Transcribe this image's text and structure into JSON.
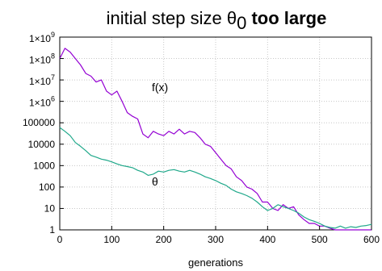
{
  "chart_data": {
    "type": "line",
    "title": {
      "prefix": "initial step size θ",
      "subscript": "0",
      "emphasis": "too large"
    },
    "xlabel": "generations",
    "ylabel": "",
    "xlim": [
      0,
      600
    ],
    "ylim": [
      1,
      1000000000
    ],
    "yscale": "log",
    "grid": true,
    "x_ticks": [
      0,
      100,
      200,
      300,
      400,
      500,
      600
    ],
    "x_tick_labels": [
      "0",
      "100",
      "200",
      "300",
      "400",
      "500",
      "600"
    ],
    "y_ticks": [
      1,
      10,
      100,
      1000,
      10000,
      100000,
      1000000,
      10000000,
      100000000,
      1000000000
    ],
    "y_tick_labels": [
      "1",
      "10",
      "100",
      "1000",
      "10000",
      "100000",
      "1×10^6",
      "1×10^7",
      "1×10^8",
      "1×10^9"
    ],
    "series": [
      {
        "name": "f(x)",
        "color": "#9400d3",
        "x": [
          0,
          10,
          20,
          30,
          40,
          50,
          60,
          70,
          80,
          90,
          100,
          110,
          120,
          130,
          140,
          150,
          160,
          170,
          180,
          190,
          200,
          210,
          220,
          230,
          240,
          250,
          260,
          270,
          280,
          290,
          300,
          310,
          320,
          330,
          340,
          350,
          360,
          370,
          380,
          390,
          400,
          410,
          420,
          430,
          440,
          450,
          460,
          470,
          480,
          490,
          500,
          510,
          520,
          530,
          540,
          550,
          560,
          570,
          580,
          590,
          600
        ],
        "y": [
          100000000,
          300000000,
          200000000,
          100000000,
          50000000,
          20000000,
          15000000,
          8000000,
          10000000,
          3000000,
          2000000,
          3000000,
          1000000,
          300000,
          200000,
          150000,
          30000,
          20000,
          40000,
          30000,
          25000,
          40000,
          30000,
          50000,
          30000,
          40000,
          35000,
          20000,
          10000,
          8000,
          4000,
          2000,
          1000,
          700,
          300,
          200,
          100,
          80,
          50,
          20,
          20,
          10,
          8,
          15,
          10,
          12,
          5,
          3,
          2,
          2,
          1.5,
          1.5,
          1.2,
          1,
          1,
          1,
          1,
          1,
          1,
          1,
          1
        ]
      },
      {
        "name": "θ",
        "color": "#1fa88a",
        "x": [
          0,
          10,
          20,
          30,
          40,
          50,
          60,
          70,
          80,
          90,
          100,
          110,
          120,
          130,
          140,
          150,
          160,
          170,
          180,
          190,
          200,
          210,
          220,
          230,
          240,
          250,
          260,
          270,
          280,
          290,
          300,
          310,
          320,
          330,
          340,
          350,
          360,
          370,
          380,
          390,
          400,
          410,
          420,
          430,
          440,
          450,
          460,
          470,
          480,
          490,
          500,
          510,
          520,
          530,
          540,
          550,
          560,
          570,
          580,
          590,
          600
        ],
        "y": [
          60000,
          40000,
          25000,
          12000,
          8000,
          5000,
          3000,
          2500,
          2000,
          1800,
          1500,
          1200,
          1000,
          900,
          800,
          600,
          500,
          350,
          400,
          550,
          500,
          600,
          650,
          550,
          500,
          600,
          500,
          400,
          300,
          250,
          200,
          150,
          120,
          80,
          60,
          50,
          40,
          30,
          20,
          12,
          8,
          10,
          15,
          12,
          10,
          8,
          6,
          4,
          3,
          2.5,
          2,
          1.5,
          1.3,
          1.2,
          1.5,
          1.2,
          1.4,
          1.3,
          1.5,
          1.6,
          1.8
        ]
      }
    ],
    "annotations": [
      {
        "text": "f(x)",
        "x": 115,
        "y": 3000000
      },
      {
        "text": "θ",
        "x": 115,
        "y": 120
      }
    ]
  }
}
